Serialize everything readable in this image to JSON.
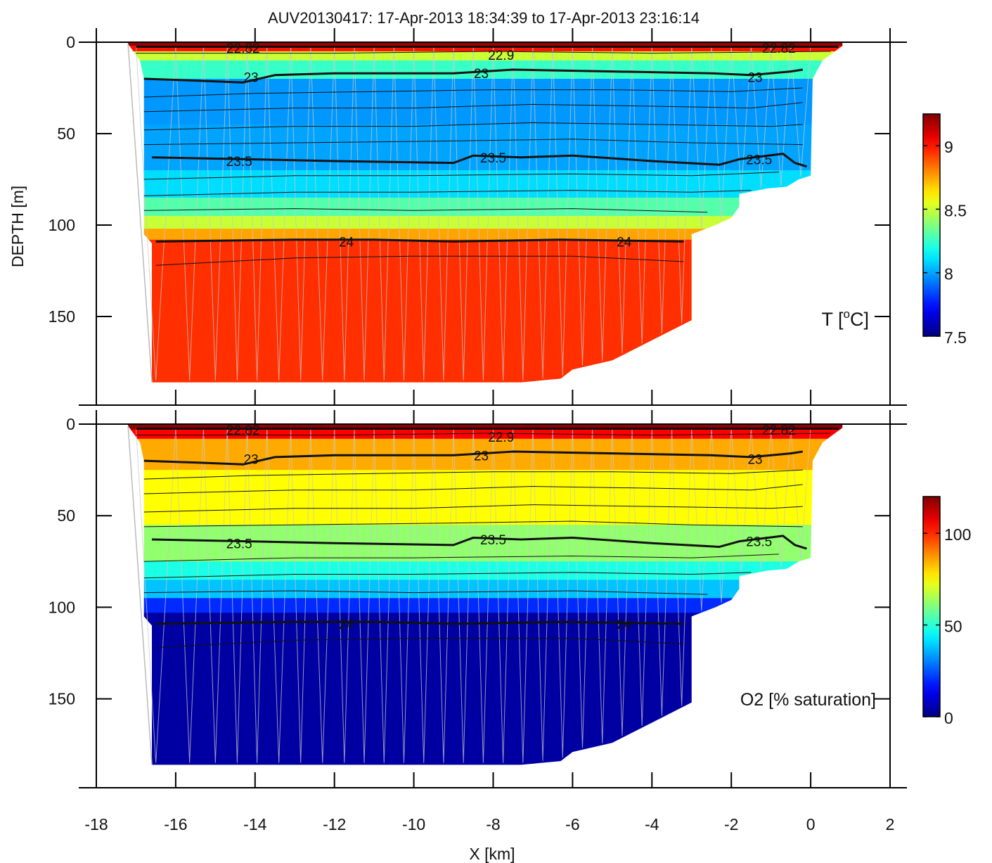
{
  "title": "AUV20130417:   17-Apr-2013 18:34:39 to 17-Apr-2013 23:16:14",
  "chart_data": [
    {
      "type": "heatmap",
      "panel": "top",
      "variable_label": "T [",
      "variable_label_sup": "o",
      "variable_label_end": "C]",
      "ylabel": "DEPTH [m]",
      "xlabel": "",
      "xlim": [
        -18,
        2
      ],
      "ylim": [
        0,
        200
      ],
      "y_reversed": true,
      "yticks": [
        0,
        50,
        100,
        150
      ],
      "xticks": [
        -18,
        -16,
        -14,
        -12,
        -10,
        -8,
        -6,
        -4,
        -2,
        0,
        2
      ],
      "colorbar": {
        "range": [
          7.5,
          9.25
        ],
        "ticks": [
          {
            "value": 9,
            "label": "9"
          },
          {
            "value": 8.5,
            "label": "8.5"
          },
          {
            "value": 8,
            "label": "8"
          },
          {
            "value": 7.5,
            "label": "7.5"
          }
        ]
      },
      "layers": [
        {
          "depth_top": 0,
          "depth_bottom": 2,
          "value": 9.2
        },
        {
          "depth_top": 2,
          "depth_bottom": 5,
          "value": 9.0
        },
        {
          "depth_top": 5,
          "depth_bottom": 10,
          "value": 8.5
        },
        {
          "depth_top": 10,
          "depth_bottom": 20,
          "value": 8.25
        },
        {
          "depth_top": 20,
          "depth_bottom": 45,
          "value": 7.98
        },
        {
          "depth_top": 45,
          "depth_bottom": 70,
          "value": 8.0
        },
        {
          "depth_top": 70,
          "depth_bottom": 85,
          "value": 8.1
        },
        {
          "depth_top": 85,
          "depth_bottom": 95,
          "value": 8.3
        },
        {
          "depth_top": 95,
          "depth_bottom": 102,
          "value": 8.5
        },
        {
          "depth_top": 102,
          "depth_bottom": 108,
          "value": 8.75
        },
        {
          "depth_top": 108,
          "depth_bottom": 200,
          "value": 8.95
        }
      ],
      "contour_labels": [
        "22.82",
        "22.9",
        "22.82",
        "23",
        "23",
        "23",
        "23.5",
        "23.5",
        "23.5",
        "24",
        "24"
      ]
    },
    {
      "type": "heatmap",
      "panel": "bottom",
      "variable_label": "O2 [% saturation]",
      "ylabel": "",
      "xlabel": "X [km]",
      "xlim": [
        -18,
        2
      ],
      "ylim": [
        0,
        200
      ],
      "y_reversed": true,
      "yticks": [
        0,
        50,
        100,
        150
      ],
      "xticks": [
        -18,
        -16,
        -14,
        -12,
        -10,
        -8,
        -6,
        -4,
        -2,
        0,
        2
      ],
      "colorbar": {
        "range": [
          0,
          120
        ],
        "ticks": [
          {
            "value": 100,
            "label": "100"
          },
          {
            "value": 50,
            "label": "50"
          },
          {
            "value": 0,
            "label": "0"
          }
        ]
      },
      "layers": [
        {
          "depth_top": 0,
          "depth_bottom": 3,
          "value": 118
        },
        {
          "depth_top": 3,
          "depth_bottom": 8,
          "value": 105
        },
        {
          "depth_top": 8,
          "depth_bottom": 25,
          "value": 85
        },
        {
          "depth_top": 25,
          "depth_bottom": 55,
          "value": 75
        },
        {
          "depth_top": 55,
          "depth_bottom": 75,
          "value": 62
        },
        {
          "depth_top": 75,
          "depth_bottom": 85,
          "value": 48
        },
        {
          "depth_top": 85,
          "depth_bottom": 95,
          "value": 38
        },
        {
          "depth_top": 95,
          "depth_bottom": 103,
          "value": 20
        },
        {
          "depth_top": 103,
          "depth_bottom": 200,
          "value": 4
        }
      ],
      "contour_labels": [
        "22.82",
        "22.9",
        "22.82",
        "23",
        "23",
        "23",
        "23.5",
        "23.5",
        "23.5",
        "24",
        "24"
      ]
    }
  ],
  "section": {
    "bottom_outline": [
      {
        "x": -16.6,
        "depth": 186
      },
      {
        "x": -7.3,
        "depth": 186
      },
      {
        "x": -6.3,
        "depth": 184
      },
      {
        "x": -6.0,
        "depth": 179
      },
      {
        "x": -5.0,
        "depth": 174
      },
      {
        "x": -4.0,
        "depth": 163
      },
      {
        "x": -3.0,
        "depth": 152
      },
      {
        "x": -3.0,
        "depth": 105
      },
      {
        "x": -2.4,
        "depth": 100
      },
      {
        "x": -2.0,
        "depth": 96
      },
      {
        "x": -1.8,
        "depth": 90
      },
      {
        "x": -1.8,
        "depth": 83
      },
      {
        "x": -1.1,
        "depth": 80
      },
      {
        "x": -0.6,
        "depth": 79
      },
      {
        "x": -0.3,
        "depth": 75
      },
      {
        "x": 0.0,
        "depth": 73
      },
      {
        "x": 0.05,
        "depth": 20
      },
      {
        "x": 0.3,
        "depth": 10
      },
      {
        "x": 0.8,
        "depth": 2
      }
    ],
    "left_outline": [
      {
        "x": -17.2,
        "depth": 1
      },
      {
        "x": -16.9,
        "depth": 10
      },
      {
        "x": -16.8,
        "depth": 20
      },
      {
        "x": -16.8,
        "depth": 105
      },
      {
        "x": -16.6,
        "depth": 110
      }
    ],
    "surface_x": [
      -17.2,
      0.8
    ],
    "contours": [
      {
        "level": "22.82",
        "thick": true,
        "points": [
          {
            "x": -17.0,
            "d": 2.5
          },
          {
            "x": 0.7,
            "d": 2.5
          }
        ]
      },
      {
        "level": "22.9",
        "thick": false,
        "points": [
          {
            "x": -17.0,
            "d": 6
          },
          {
            "x": -12,
            "d": 6
          },
          {
            "x": -8,
            "d": 5
          },
          {
            "x": -4,
            "d": 6
          },
          {
            "x": 0.5,
            "d": 5
          }
        ]
      },
      {
        "level": "23",
        "thick": true,
        "points": [
          {
            "x": -16.8,
            "d": 20
          },
          {
            "x": -15.5,
            "d": 21
          },
          {
            "x": -14.3,
            "d": 22
          },
          {
            "x": -13.5,
            "d": 18
          },
          {
            "x": -12,
            "d": 17
          },
          {
            "x": -9,
            "d": 17
          },
          {
            "x": -7.5,
            "d": 15
          },
          {
            "x": -5,
            "d": 16
          },
          {
            "x": -2.5,
            "d": 17
          },
          {
            "x": -1.5,
            "d": 18
          },
          {
            "x": -0.5,
            "d": 16
          },
          {
            "x": -0.2,
            "d": 15
          }
        ]
      },
      {
        "level": "",
        "thick": false,
        "points": [
          {
            "x": -16.8,
            "d": 30
          },
          {
            "x": -14,
            "d": 28
          },
          {
            "x": -11,
            "d": 27
          },
          {
            "x": -8,
            "d": 26
          },
          {
            "x": -5,
            "d": 26
          },
          {
            "x": -2,
            "d": 27
          },
          {
            "x": -0.2,
            "d": 25
          }
        ]
      },
      {
        "level": "",
        "thick": false,
        "points": [
          {
            "x": -16.8,
            "d": 38
          },
          {
            "x": -13,
            "d": 36
          },
          {
            "x": -10,
            "d": 36
          },
          {
            "x": -7,
            "d": 34
          },
          {
            "x": -4,
            "d": 35
          },
          {
            "x": -1.5,
            "d": 36
          },
          {
            "x": -0.2,
            "d": 33
          }
        ]
      },
      {
        "level": "",
        "thick": false,
        "points": [
          {
            "x": -16.8,
            "d": 48
          },
          {
            "x": -13,
            "d": 46
          },
          {
            "x": -10,
            "d": 46
          },
          {
            "x": -7,
            "d": 44
          },
          {
            "x": -4,
            "d": 45
          },
          {
            "x": -1,
            "d": 46
          },
          {
            "x": -0.2,
            "d": 45
          }
        ]
      },
      {
        "level": "",
        "thick": false,
        "points": [
          {
            "x": -16.8,
            "d": 56
          },
          {
            "x": -13,
            "d": 55
          },
          {
            "x": -9,
            "d": 54
          },
          {
            "x": -6,
            "d": 53
          },
          {
            "x": -3,
            "d": 55
          },
          {
            "x": -0.2,
            "d": 56
          }
        ]
      },
      {
        "level": "23.5",
        "thick": true,
        "points": [
          {
            "x": -16.6,
            "d": 63
          },
          {
            "x": -14.2,
            "d": 64
          },
          {
            "x": -12,
            "d": 65
          },
          {
            "x": -9,
            "d": 66
          },
          {
            "x": -8.5,
            "d": 62
          },
          {
            "x": -7.3,
            "d": 63
          },
          {
            "x": -6,
            "d": 62
          },
          {
            "x": -4,
            "d": 65
          },
          {
            "x": -2.3,
            "d": 67
          },
          {
            "x": -1.8,
            "d": 64
          },
          {
            "x": -0.7,
            "d": 61
          },
          {
            "x": -0.4,
            "d": 66
          },
          {
            "x": -0.1,
            "d": 68
          }
        ]
      },
      {
        "level": "",
        "thick": false,
        "points": [
          {
            "x": -16.8,
            "d": 75
          },
          {
            "x": -13,
            "d": 73
          },
          {
            "x": -10,
            "d": 73
          },
          {
            "x": -6,
            "d": 72
          },
          {
            "x": -3,
            "d": 73
          },
          {
            "x": -0.8,
            "d": 71
          }
        ]
      },
      {
        "level": "",
        "thick": false,
        "points": [
          {
            "x": -16.8,
            "d": 84
          },
          {
            "x": -13,
            "d": 82
          },
          {
            "x": -10,
            "d": 82
          },
          {
            "x": -6,
            "d": 81
          },
          {
            "x": -3,
            "d": 82
          },
          {
            "x": -1.5,
            "d": 81
          }
        ]
      },
      {
        "level": "",
        "thick": false,
        "points": [
          {
            "x": -16.8,
            "d": 92
          },
          {
            "x": -13,
            "d": 91
          },
          {
            "x": -10,
            "d": 92
          },
          {
            "x": -6,
            "d": 91
          },
          {
            "x": -2.6,
            "d": 93
          }
        ]
      },
      {
        "level": "24",
        "thick": true,
        "points": [
          {
            "x": -16.5,
            "d": 109
          },
          {
            "x": -13,
            "d": 108
          },
          {
            "x": -11,
            "d": 108
          },
          {
            "x": -9,
            "d": 109
          },
          {
            "x": -6.3,
            "d": 108
          },
          {
            "x": -3.2,
            "d": 109
          }
        ]
      },
      {
        "level": "",
        "thick": false,
        "points": [
          {
            "x": -16.5,
            "d": 122
          },
          {
            "x": -13,
            "d": 118
          },
          {
            "x": -10,
            "d": 117
          },
          {
            "x": -6,
            "d": 117
          },
          {
            "x": -3.2,
            "d": 120
          }
        ]
      }
    ],
    "contour_label_positions": [
      {
        "text": "22.82",
        "x": -14.3,
        "d": 3
      },
      {
        "text": "22.9",
        "x": -7.8,
        "d": 7
      },
      {
        "text": "22.82",
        "x": -0.8,
        "d": 3
      },
      {
        "text": "23",
        "x": -14.1,
        "d": 19
      },
      {
        "text": "23",
        "x": -8.3,
        "d": 17
      },
      {
        "text": "23",
        "x": -1.4,
        "d": 19
      },
      {
        "text": "23.5",
        "x": -14.4,
        "d": 65
      },
      {
        "text": "23.5",
        "x": -8.0,
        "d": 63
      },
      {
        "text": "23.5",
        "x": -1.3,
        "d": 64
      },
      {
        "text": "24",
        "x": -11.7,
        "d": 109
      },
      {
        "text": "24",
        "x": -4.7,
        "d": 109
      }
    ],
    "profile_x": [
      -17.0,
      -16.0,
      -15.3,
      -14.7,
      -14.2,
      -13.7,
      -13.1,
      -12.6,
      -12.0,
      -11.5,
      -11.0,
      -10.5,
      -10.0,
      -9.5,
      -9.0,
      -8.5,
      -8.0,
      -7.5,
      -7.0,
      -6.5,
      -6.0,
      -5.5,
      -5.0,
      -4.5,
      -4.0,
      -3.5,
      -3.0,
      -2.5,
      -2.0,
      -1.5,
      -1.0,
      -0.5,
      0.0
    ]
  },
  "colors": {
    "axis": "#000000",
    "profile_lines": "#c8c8c8",
    "contour": "#111111"
  }
}
